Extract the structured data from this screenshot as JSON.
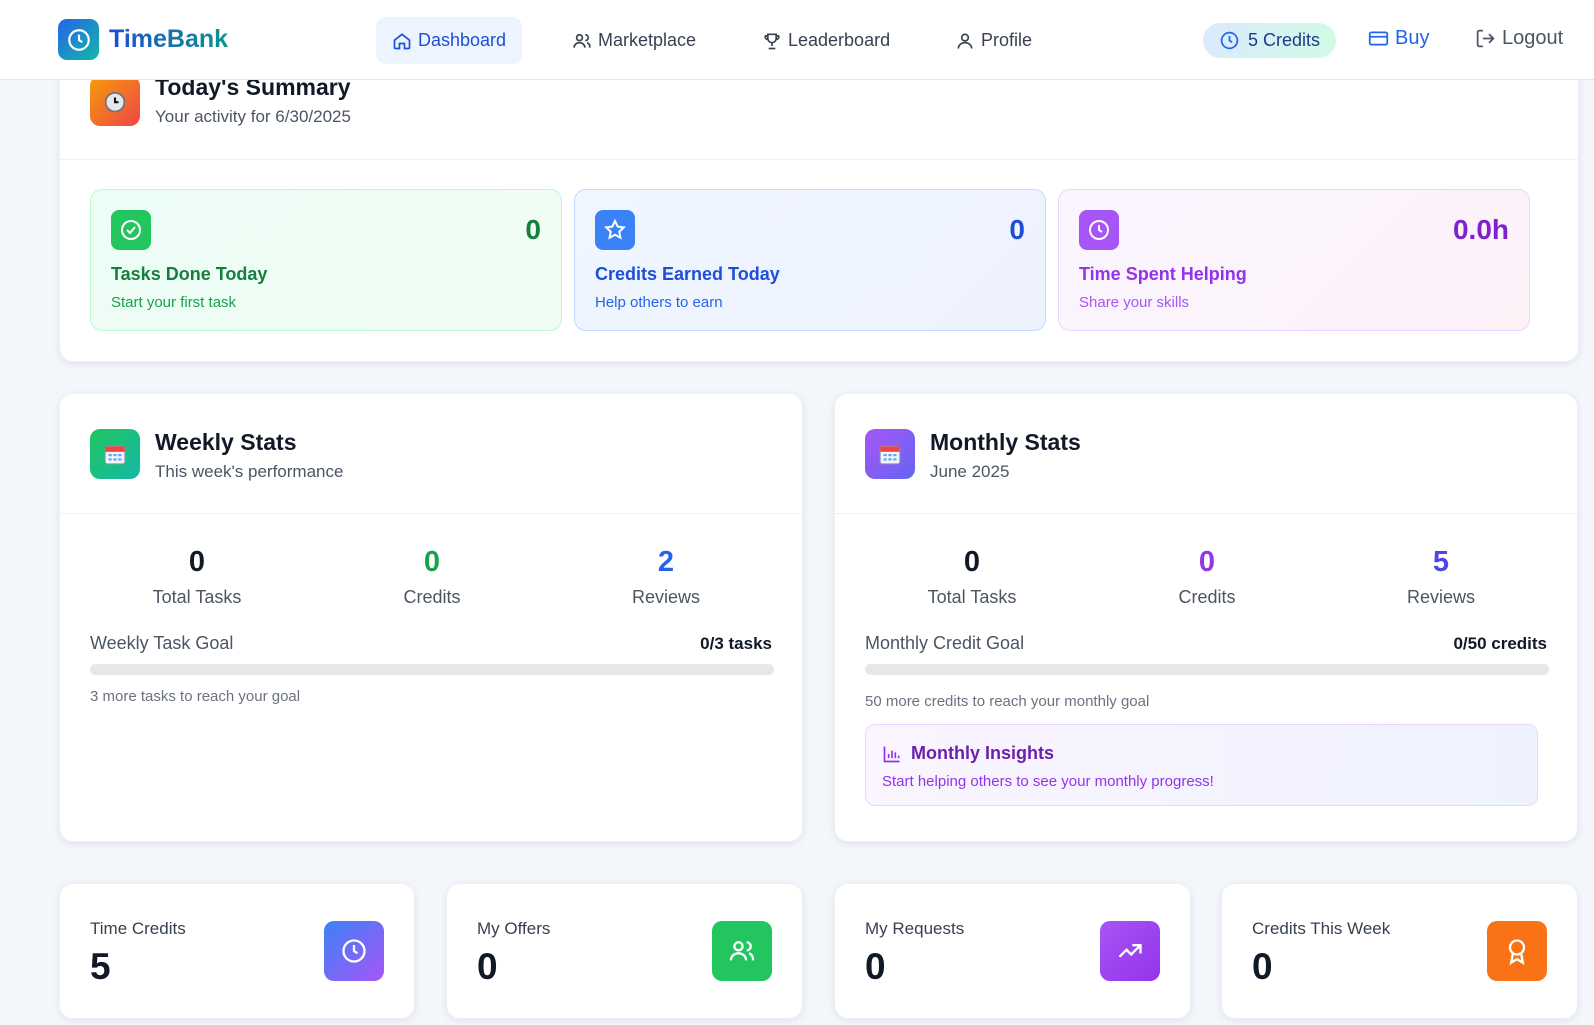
{
  "app": {
    "name": "TimeBank"
  },
  "nav": {
    "items": [
      {
        "label": "Dashboard",
        "icon": "home-icon",
        "active": true
      },
      {
        "label": "Marketplace",
        "icon": "users-icon"
      },
      {
        "label": "Leaderboard",
        "icon": "trophy-icon"
      },
      {
        "label": "Profile",
        "icon": "user-icon"
      }
    ],
    "credits": "5 Credits",
    "buy": "Buy",
    "logout": "Logout"
  },
  "summary": {
    "title": "Today's Summary",
    "subtitle": "Your activity for 6/30/2025",
    "tiles": [
      {
        "value": "0",
        "label": "Tasks Done Today",
        "sub": "Start your first task",
        "icon": "check-circle-icon"
      },
      {
        "value": "0",
        "label": "Credits Earned Today",
        "sub": "Help others to earn",
        "icon": "star-icon"
      },
      {
        "value": "0.0h",
        "label": "Time Spent Helping",
        "sub": "Share your skills",
        "icon": "clock-icon"
      }
    ]
  },
  "weekly": {
    "title": "Weekly Stats",
    "subtitle": "This week's performance",
    "stats": [
      {
        "value": "0",
        "label": "Total Tasks"
      },
      {
        "value": "0",
        "label": "Credits"
      },
      {
        "value": "2",
        "label": "Reviews"
      }
    ],
    "goal_label": "Weekly Task Goal",
    "goal_value": "0/3 tasks",
    "goal_progress": 0,
    "hint": "3 more tasks to reach your goal"
  },
  "monthly": {
    "title": "Monthly Stats",
    "subtitle": "June 2025",
    "stats": [
      {
        "value": "0",
        "label": "Total Tasks"
      },
      {
        "value": "0",
        "label": "Credits"
      },
      {
        "value": "5",
        "label": "Reviews"
      }
    ],
    "goal_label": "Monthly Credit Goal",
    "goal_value": "0/50 credits",
    "goal_progress": 0,
    "hint": "50 more credits to reach your monthly goal",
    "insights_title": "Monthly Insights",
    "insights_text": "Start helping others to see your monthly progress!"
  },
  "cards": [
    {
      "label": "Time Credits",
      "value": "5",
      "icon": "clock-icon"
    },
    {
      "label": "My Offers",
      "value": "0",
      "icon": "users-icon"
    },
    {
      "label": "My Requests",
      "value": "0",
      "icon": "trending-up-icon"
    },
    {
      "label": "Credits This Week",
      "value": "0",
      "icon": "award-icon"
    }
  ],
  "colors": {
    "primary": "#1d4ed8",
    "green": "#16a34a",
    "blue": "#2563eb",
    "purple": "#9333ea",
    "orange": "#f97316"
  }
}
